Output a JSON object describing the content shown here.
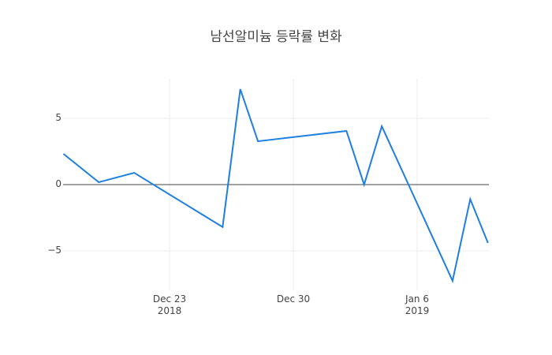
{
  "chart_data": {
    "type": "line",
    "title": "남선알미늄 등락률 변화",
    "xlabel": "",
    "ylabel": "",
    "x": [
      "2018-12-17",
      "2018-12-19",
      "2018-12-21",
      "2018-12-26",
      "2018-12-27",
      "2018-12-28",
      "2019-01-02",
      "2019-01-03",
      "2019-01-04",
      "2019-01-08",
      "2019-01-09",
      "2019-01-10"
    ],
    "series": [
      {
        "name": "등락률",
        "color": "#1f7fe0",
        "values": [
          2.32,
          0.18,
          0.89,
          -3.2,
          7.2,
          3.27,
          4.05,
          0.0,
          4.4,
          -7.26,
          -1.1,
          -4.4
        ]
      }
    ],
    "ylim": [
      -7.8,
      8.0
    ],
    "yticks": [
      5,
      0,
      -5
    ],
    "ytick_labels": [
      "5",
      "0",
      "−5"
    ],
    "xticks": [
      {
        "date": "2018-12-23",
        "label": "Dec 23",
        "sublabel": "2018"
      },
      {
        "date": "2018-12-30",
        "label": "Dec 30",
        "sublabel": ""
      },
      {
        "date": "2019-01-06",
        "label": "Jan 6",
        "sublabel": "2019"
      }
    ],
    "grid": true,
    "legend": false
  },
  "colors": {
    "line": "#1f7fe0",
    "grid": "#eeeeee",
    "zero": "#444444",
    "text": "#444444"
  }
}
